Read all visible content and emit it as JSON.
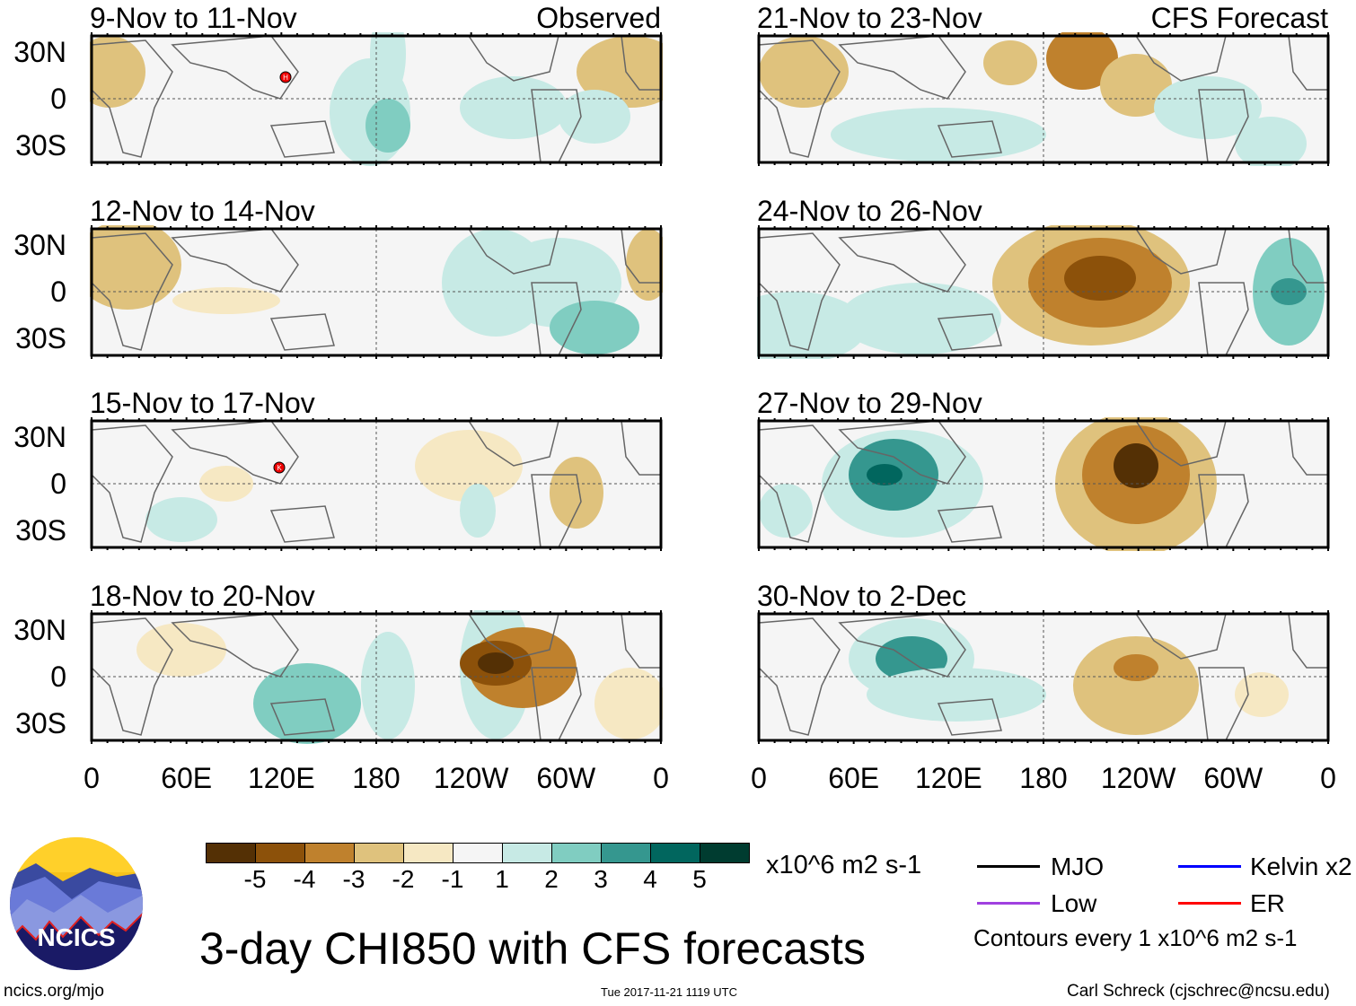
{
  "chart_data": {
    "type": "heatmap",
    "title": "3-day CHI850 with CFS forecasts",
    "variable": "CHI850 anomaly",
    "units": "x10^6 m2 s-1",
    "observed_label": "Observed",
    "forecast_label": "CFS Forecast",
    "lat_ticks": [
      "30N",
      "0",
      "30S"
    ],
    "lon_ticks": [
      "0",
      "60E",
      "120E",
      "180",
      "120W",
      "60W",
      "0"
    ],
    "lat_range": [
      -40,
      40
    ],
    "lon_range": [
      0,
      360
    ],
    "panels": [
      {
        "title": "9-Nov to 11-Nov",
        "kind": "observed",
        "storm": "H"
      },
      {
        "title": "12-Nov to 14-Nov",
        "kind": "observed"
      },
      {
        "title": "15-Nov to 17-Nov",
        "kind": "observed",
        "storm": "K"
      },
      {
        "title": "18-Nov to 20-Nov",
        "kind": "observed"
      },
      {
        "title": "21-Nov to 23-Nov",
        "kind": "forecast"
      },
      {
        "title": "24-Nov to 26-Nov",
        "kind": "forecast"
      },
      {
        "title": "27-Nov to 29-Nov",
        "kind": "forecast"
      },
      {
        "title": "30-Nov to 2-Dec",
        "kind": "forecast"
      }
    ],
    "colorbar": {
      "levels": [
        "-5",
        "-4",
        "-3",
        "-2",
        "-1",
        "1",
        "2",
        "3",
        "4",
        "5"
      ],
      "colors": [
        "#543005",
        "#8c510a",
        "#bf812d",
        "#dfc27d",
        "#f6e8c3",
        "#f5f5f5",
        "#c7eae5",
        "#80cdc1",
        "#35978f",
        "#01665e",
        "#003c30"
      ]
    },
    "legend": [
      {
        "label": "MJO",
        "color": "#000000"
      },
      {
        "label": "Kelvin x2",
        "color": "#0000ff"
      },
      {
        "label": "Low",
        "color": "#a040e0"
      },
      {
        "label": "ER",
        "color": "#ff0000"
      }
    ],
    "contour_note": "Contours every 1 x10^6 m2 s-1"
  },
  "footer": {
    "logo_text": "NCICS",
    "url": "ncics.org/mjo",
    "timestamp": "Tue 2017-11-21 1119 UTC",
    "author": "Carl Schreck (cjschrec@ncsu.edu)"
  }
}
